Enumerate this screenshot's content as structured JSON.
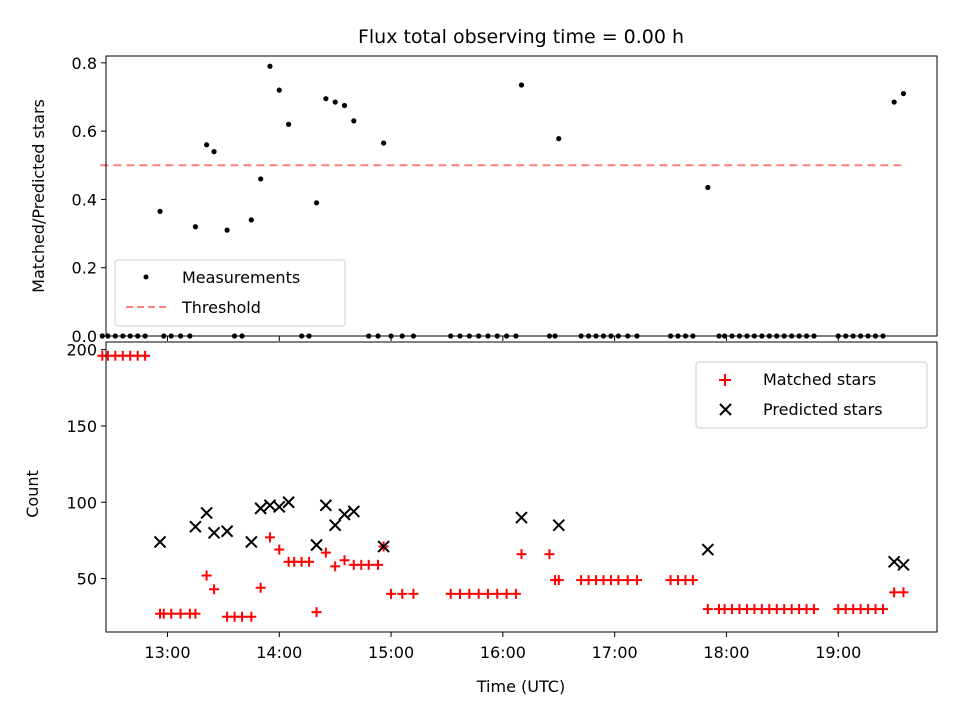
{
  "chart_data": [
    {
      "type": "scatter",
      "title": "Flux total observing time = 0.00 h",
      "xlabel": "",
      "ylabel": "Matched/Predicted stars",
      "xlim": [
        "12:27",
        "19:53"
      ],
      "ylim": [
        0,
        0.82
      ],
      "yticks": [
        "0.0",
        "0.2",
        "0.4",
        "0.6",
        "0.8"
      ],
      "xticks": [
        "13:00",
        "14:00",
        "15:00",
        "16:00",
        "17:00",
        "18:00",
        "19:00"
      ],
      "grid": false,
      "legend_position": "lower-left",
      "series": [
        {
          "name": "Measurements",
          "marker": "dot",
          "color": "#000000",
          "x": [
            "12:56",
            "13:15",
            "13:21",
            "13:25",
            "13:32",
            "13:45",
            "13:50",
            "13:55",
            "14:00",
            "14:05",
            "14:20",
            "14:25",
            "14:30",
            "14:35",
            "14:40",
            "14:56",
            "16:10",
            "16:30",
            "17:50",
            "19:30",
            "19:35",
            "12:25",
            "12:28",
            "12:32",
            "12:36",
            "12:40",
            "12:44",
            "12:48",
            "12:58",
            "13:02",
            "13:07",
            "13:12",
            "13:36",
            "13:40",
            "14:12",
            "14:16",
            "14:48",
            "14:53",
            "15:00",
            "15:06",
            "15:12",
            "15:32",
            "15:37",
            "15:42",
            "15:47",
            "15:52",
            "15:57",
            "16:02",
            "16:07",
            "16:25",
            "16:28",
            "16:42",
            "16:46",
            "16:50",
            "16:54",
            "16:58",
            "17:02",
            "17:07",
            "17:12",
            "17:30",
            "17:34",
            "17:38",
            "17:42",
            "17:56",
            "17:59",
            "18:03",
            "18:07",
            "18:11",
            "18:15",
            "18:19",
            "18:23",
            "18:27",
            "18:31",
            "18:35",
            "18:39",
            "18:43",
            "18:47",
            "19:00",
            "19:04",
            "19:08",
            "19:12",
            "19:16",
            "19:20",
            "19:24"
          ],
          "y": [
            0.365,
            0.32,
            0.56,
            0.54,
            0.31,
            0.34,
            0.46,
            0.79,
            0.72,
            0.62,
            0.39,
            0.695,
            0.685,
            0.675,
            0.63,
            0.565,
            0.735,
            0.578,
            0.435,
            0.685,
            0.71,
            0,
            0,
            0,
            0,
            0,
            0,
            0,
            0,
            0,
            0,
            0,
            0,
            0,
            0,
            0,
            0,
            0,
            0,
            0,
            0,
            0,
            0,
            0,
            0,
            0,
            0,
            0,
            0,
            0,
            0,
            0,
            0,
            0,
            0,
            0,
            0,
            0,
            0,
            0,
            0,
            0,
            0,
            0,
            0,
            0,
            0,
            0,
            0,
            0,
            0,
            0,
            0,
            0,
            0,
            0,
            0,
            0,
            0,
            0,
            0,
            0,
            0,
            0
          ]
        },
        {
          "name": "Threshold",
          "line": "dashed",
          "color": "#ff7f7f",
          "x": [
            "12:24",
            "19:35"
          ],
          "y": [
            0.5,
            0.5
          ]
        }
      ]
    },
    {
      "type": "scatter",
      "title": "",
      "xlabel": "Time (UTC)",
      "ylabel": "Count",
      "xlim": [
        "12:27",
        "19:53"
      ],
      "ylim": [
        15,
        205
      ],
      "yticks": [
        "50",
        "100",
        "150",
        "200"
      ],
      "xticks": [
        "13:00",
        "14:00",
        "15:00",
        "16:00",
        "17:00",
        "18:00",
        "19:00"
      ],
      "grid": false,
      "legend_position": "upper-right",
      "series": [
        {
          "name": "Matched stars",
          "marker": "plus",
          "color": "#ff0000",
          "x": [
            "12:25",
            "12:28",
            "12:32",
            "12:36",
            "12:40",
            "12:44",
            "12:48",
            "12:56",
            "12:58",
            "13:02",
            "13:07",
            "13:12",
            "13:15",
            "13:21",
            "13:25",
            "13:32",
            "13:36",
            "13:40",
            "13:45",
            "13:50",
            "13:55",
            "14:00",
            "14:05",
            "14:08",
            "14:12",
            "14:16",
            "14:20",
            "14:25",
            "14:30",
            "14:35",
            "14:40",
            "14:44",
            "14:48",
            "14:53",
            "14:56",
            "15:00",
            "15:06",
            "15:12",
            "15:32",
            "15:37",
            "15:42",
            "15:47",
            "15:52",
            "15:57",
            "16:02",
            "16:07",
            "16:10",
            "16:25",
            "16:28",
            "16:30",
            "16:42",
            "16:46",
            "16:50",
            "16:54",
            "16:58",
            "17:02",
            "17:07",
            "17:12",
            "17:30",
            "17:34",
            "17:38",
            "17:42",
            "17:50",
            "17:56",
            "17:59",
            "18:03",
            "18:07",
            "18:11",
            "18:15",
            "18:19",
            "18:23",
            "18:27",
            "18:31",
            "18:35",
            "18:39",
            "18:43",
            "18:47",
            "19:00",
            "19:04",
            "19:08",
            "19:12",
            "19:16",
            "19:20",
            "19:24",
            "19:30",
            "19:35"
          ],
          "y": [
            196,
            196,
            196,
            196,
            196,
            196,
            196,
            27,
            27,
            27,
            27,
            27,
            27,
            52,
            43,
            25,
            25,
            25,
            25,
            44,
            77,
            69,
            61,
            61,
            61,
            61,
            28,
            67,
            58,
            62,
            59,
            59,
            59,
            59,
            71,
            40,
            40,
            40,
            40,
            40,
            40,
            40,
            40,
            40,
            40,
            40,
            66,
            66,
            49,
            49,
            49,
            49,
            49,
            49,
            49,
            49,
            49,
            49,
            49,
            49,
            49,
            49,
            30,
            30,
            30,
            30,
            30,
            30,
            30,
            30,
            30,
            30,
            30,
            30,
            30,
            30,
            30,
            30,
            30,
            30,
            30,
            30,
            30,
            30,
            41,
            41
          ]
        },
        {
          "name": "Predicted stars",
          "marker": "x",
          "color": "#000000",
          "x": [
            "12:56",
            "13:15",
            "13:21",
            "13:25",
            "13:32",
            "13:45",
            "13:50",
            "13:55",
            "14:00",
            "14:05",
            "14:20",
            "14:25",
            "14:30",
            "14:35",
            "14:40",
            "14:56",
            "16:10",
            "16:30",
            "17:50",
            "19:30",
            "19:35"
          ],
          "y": [
            74,
            84,
            93,
            80,
            81,
            74,
            96,
            98,
            97,
            100,
            72,
            98,
            85,
            92,
            94,
            71,
            90,
            85,
            69,
            61,
            59
          ]
        }
      ]
    }
  ]
}
